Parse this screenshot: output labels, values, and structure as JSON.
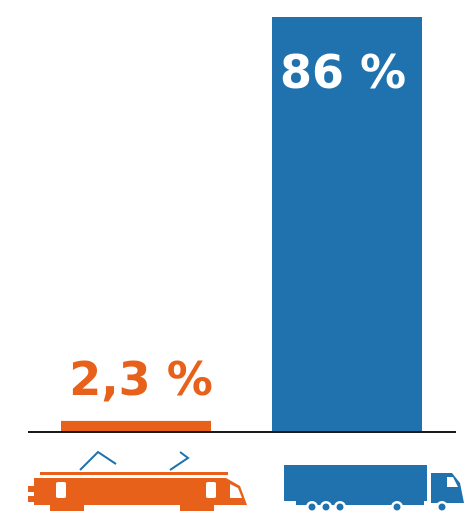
{
  "chart_data": {
    "type": "bar",
    "categories": [
      "train",
      "truck"
    ],
    "values": [
      2.3,
      86
    ],
    "value_labels": [
      "2,3 %",
      "86 %"
    ],
    "colors": [
      "#e8611a",
      "#1f72ad"
    ],
    "ylim": [
      0,
      86
    ],
    "grid": false,
    "category_icons": [
      "locomotive-icon",
      "truck-icon"
    ]
  }
}
